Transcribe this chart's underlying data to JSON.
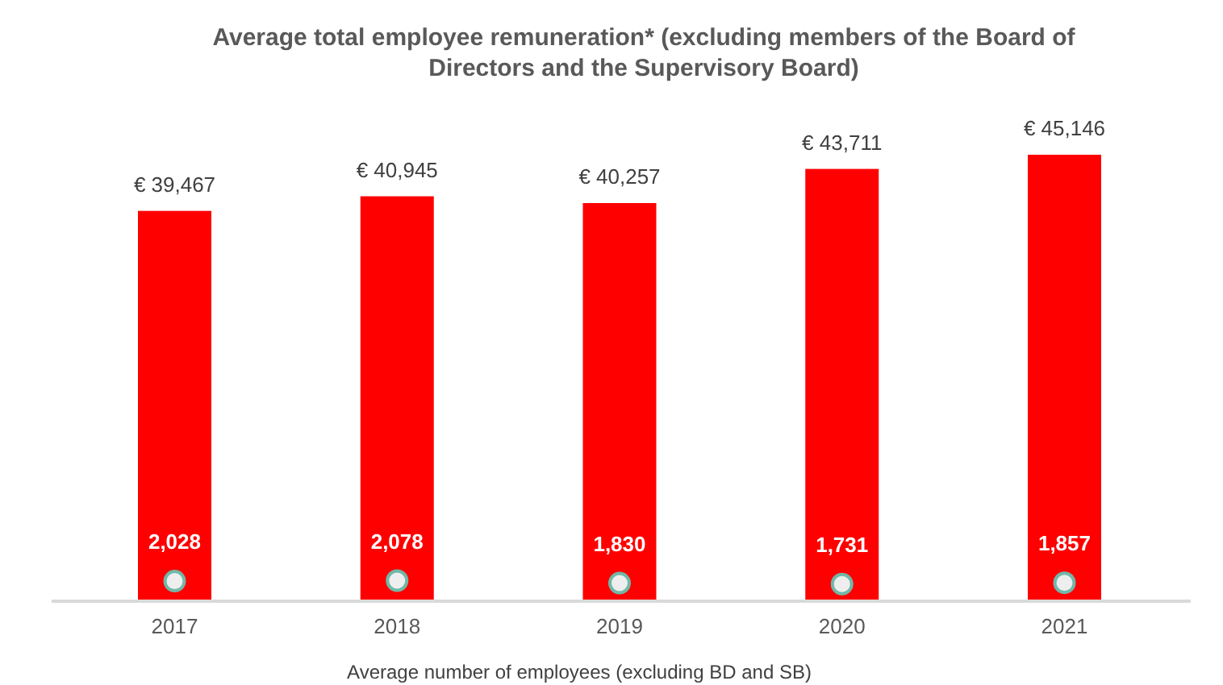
{
  "chart_data": {
    "type": "bar",
    "title": "Average total employee remuneration* (excluding members of the Board of Directors and the Supervisory Board)",
    "xlabel": "Average number of employees (excluding BD and SB)",
    "categories": [
      "2017",
      "2018",
      "2019",
      "2020",
      "2021"
    ],
    "series": [
      {
        "color": "#ff0000",
        "values": [
          39467,
          40945,
          40257,
          43711,
          45146
        ],
        "value_labels": [
          "€ 39,467",
          "€ 40,945",
          "€ 40,257",
          "€ 43,711",
          "€ 45,146"
        ]
      },
      {
        "type": "scatter",
        "color": "#eeeeee",
        "marker": "circle",
        "values": [
          2028,
          2078,
          1830,
          1731,
          1857
        ],
        "value_labels": [
          "2,028",
          "2,078",
          "1,830",
          "1,731",
          "1,857"
        ]
      }
    ]
  }
}
